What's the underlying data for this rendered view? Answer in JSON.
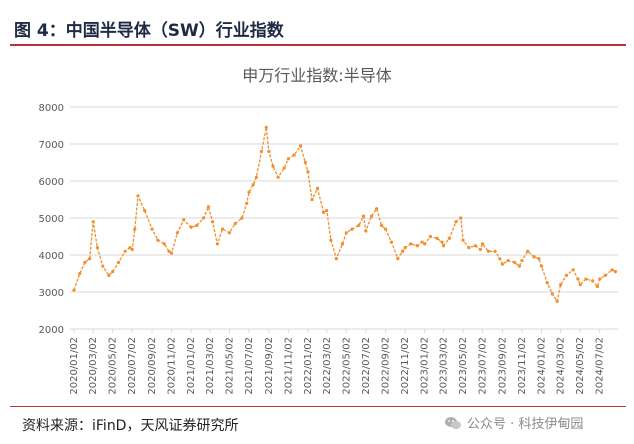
{
  "figure": {
    "title": "图 4：中国半导体（SW）行业指数",
    "source": "资料来源：iFinD，天风证券研究所",
    "watermark": "公众号 · 科技伊甸园"
  },
  "colors": {
    "accent": "#b8323a",
    "series": "#f28e2b",
    "grid": "#d9d9d9",
    "axis_text": "#595959"
  },
  "chart_data": {
    "type": "line",
    "title": "申万行业指数:半导体",
    "xlabel": "",
    "ylabel": "",
    "ylim": [
      2000,
      8000
    ],
    "yticks": [
      2000,
      3000,
      4000,
      5000,
      6000,
      7000,
      8000
    ],
    "grid": true,
    "x_ticks": [
      "2020/01/02",
      "2020/03/02",
      "2020/05/02",
      "2020/07/02",
      "2020/09/02",
      "2020/11/02",
      "2021/01/02",
      "2021/03/02",
      "2021/05/02",
      "2021/07/02",
      "2021/09/02",
      "2021/11/02",
      "2022/01/02",
      "2022/03/02",
      "2022/05/02",
      "2022/07/02",
      "2022/09/02",
      "2022/11/02",
      "2023/01/02",
      "2023/03/02",
      "2023/05/02",
      "2023/07/02",
      "2023/09/02",
      "2023/11/02",
      "2024/01/02",
      "2024/03/02",
      "2024/05/02",
      "2024/07/02"
    ],
    "series": [
      {
        "name": "申万行业指数:半导体",
        "x": [
          "2020/01/02",
          "2020/01/20",
          "2020/02/05",
          "2020/02/20",
          "2020/03/02",
          "2020/03/15",
          "2020/04/01",
          "2020/04/20",
          "2020/05/02",
          "2020/05/20",
          "2020/06/10",
          "2020/06/25",
          "2020/07/02",
          "2020/07/10",
          "2020/07/20",
          "2020/08/10",
          "2020/09/02",
          "2020/09/20",
          "2020/10/10",
          "2020/10/25",
          "2020/11/02",
          "2020/11/20",
          "2020/12/10",
          "2021/01/02",
          "2021/01/20",
          "2021/02/10",
          "2021/02/25",
          "2021/03/10",
          "2021/03/25",
          "2021/04/10",
          "2021/05/02",
          "2021/05/20",
          "2021/06/10",
          "2021/06/25",
          "2021/07/02",
          "2021/07/15",
          "2021/07/25",
          "2021/08/10",
          "2021/08/25",
          "2021/09/02",
          "2021/09/15",
          "2021/10/01",
          "2021/10/20",
          "2021/11/02",
          "2021/11/20",
          "2021/12/10",
          "2021/12/25",
          "2022/01/02",
          "2022/01/15",
          "2022/02/01",
          "2022/02/20",
          "2022/03/02",
          "2022/03/15",
          "2022/04/01",
          "2022/04/20",
          "2022/05/02",
          "2022/05/20",
          "2022/06/10",
          "2022/06/25",
          "2022/07/02",
          "2022/07/20",
          "2022/08/05",
          "2022/08/20",
          "2022/09/02",
          "2022/09/20",
          "2022/10/10",
          "2022/10/25",
          "2022/11/02",
          "2022/11/20",
          "2022/12/10",
          "2022/12/25",
          "2023/01/02",
          "2023/01/20",
          "2023/02/10",
          "2023/02/25",
          "2023/03/02",
          "2023/03/20",
          "2023/04/10",
          "2023/04/25",
          "2023/05/02",
          "2023/05/20",
          "2023/06/10",
          "2023/06/25",
          "2023/07/02",
          "2023/07/20",
          "2023/08/10",
          "2023/08/25",
          "2023/09/02",
          "2023/09/20",
          "2023/10/10",
          "2023/10/25",
          "2023/11/02",
          "2023/11/20",
          "2023/12/10",
          "2023/12/25",
          "2024/01/02",
          "2024/01/20",
          "2024/02/05",
          "2024/02/20",
          "2024/03/02",
          "2024/03/20",
          "2024/04/10",
          "2024/04/25",
          "2024/05/02",
          "2024/05/20",
          "2024/06/10",
          "2024/06/25",
          "2024/07/02",
          "2024/07/20",
          "2024/08/10",
          "2024/08/20"
        ],
        "values": [
          3050,
          3500,
          3800,
          3900,
          4900,
          4200,
          3700,
          3450,
          3550,
          3800,
          4100,
          4200,
          4150,
          4700,
          5600,
          5200,
          4700,
          4400,
          4300,
          4100,
          4050,
          4600,
          4950,
          4750,
          4800,
          5000,
          5300,
          4900,
          4300,
          4700,
          4600,
          4850,
          5000,
          5400,
          5700,
          5900,
          6100,
          6800,
          7450,
          6800,
          6400,
          6100,
          6350,
          6600,
          6700,
          6950,
          6500,
          6250,
          5500,
          5800,
          5150,
          5200,
          4400,
          3900,
          4300,
          4600,
          4700,
          4800,
          5050,
          4650,
          5050,
          5250,
          4800,
          4700,
          4350,
          3900,
          4100,
          4200,
          4300,
          4250,
          4350,
          4300,
          4500,
          4450,
          4350,
          4250,
          4450,
          4900,
          5000,
          4400,
          4200,
          4250,
          4150,
          4300,
          4100,
          4100,
          3900,
          3750,
          3850,
          3800,
          3700,
          3850,
          4100,
          3950,
          3900,
          3700,
          3250,
          2950,
          2750,
          3200,
          3450,
          3600,
          3350,
          3200,
          3350,
          3300,
          3150,
          3350,
          3450,
          3600,
          3550
        ]
      }
    ]
  }
}
